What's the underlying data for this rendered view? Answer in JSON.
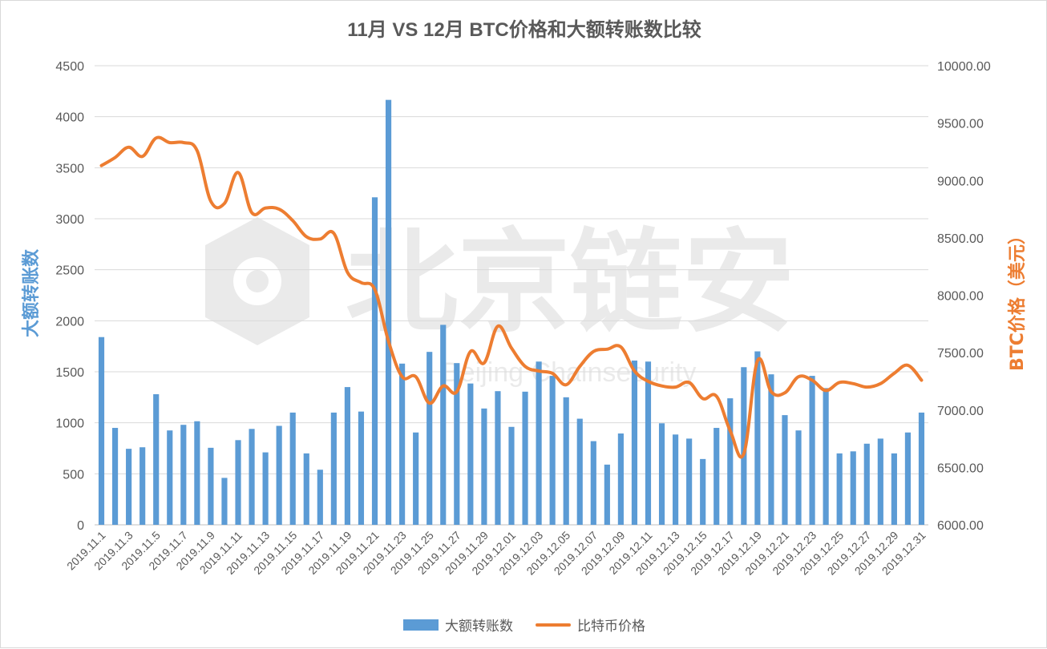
{
  "chart_data": {
    "type": "bar",
    "title": "11月 VS 12月 BTC价格和大额转账数比较",
    "ylabel_left": "大额转账数",
    "ylabel_right": "BTC价格（美元）",
    "ylim_left": [
      0,
      4500
    ],
    "yticks_left": [
      "0",
      "500",
      "1000",
      "1500",
      "2000",
      "2500",
      "3000",
      "3500",
      "4000",
      "4500"
    ],
    "ylim_right": [
      6000,
      10000
    ],
    "yticks_right": [
      "6000.00",
      "6500.00",
      "7000.00",
      "7500.00",
      "8000.00",
      "8500.00",
      "9000.00",
      "9500.00",
      "10000.00"
    ],
    "grid": true,
    "legend_position": "bottom",
    "categories": [
      "2019.11.1",
      "2019.11.2",
      "2019.11.3",
      "2019.11.4",
      "2019.11.5",
      "2019.11.6",
      "2019.11.7",
      "2019.11.8",
      "2019.11.9",
      "2019.11.10",
      "2019.11.11",
      "2019.11.12",
      "2019.11.13",
      "2019.11.14",
      "2019.11.15",
      "2019.11.16",
      "2019.11.17",
      "2019.11.18",
      "2019.11.19",
      "2019.11.20",
      "2019.11.21",
      "2019.11.22",
      "2019.11.23",
      "2019.11.24",
      "2019.11.25",
      "2019.11.26",
      "2019.11.27",
      "2019.11.28",
      "2019.11.29",
      "2019.11.30",
      "2019.12.01",
      "2019.12.02",
      "2019.12.03",
      "2019.12.04",
      "2019.12.05",
      "2019.12.06",
      "2019.12.07",
      "2019.12.08",
      "2019.12.09",
      "2019.12.10",
      "2019.12.11",
      "2019.12.12",
      "2019.12.13",
      "2019.12.14",
      "2019.12.15",
      "2019.12.16",
      "2019.12.17",
      "2019.12.18",
      "2019.12.19",
      "2019.12.20",
      "2019.12.21",
      "2019.12.22",
      "2019.12.23",
      "2019.12.24",
      "2019.12.25",
      "2019.12.26",
      "2019.12.27",
      "2019.12.28",
      "2019.12.29",
      "2019.12.30",
      "2019.12.31"
    ],
    "tick_labels": [
      "2019.11.1",
      "2019.11.3",
      "2019.11.5",
      "2019.11.7",
      "2019.11.9",
      "2019.11.11",
      "2019.11.13",
      "2019.11.15",
      "2019.11.17",
      "2019.11.19",
      "2019.11.21",
      "2019.11.23",
      "2019.11.25",
      "2019.11.27",
      "2019.11.29",
      "2019.12.01",
      "2019.12.03",
      "2019.12.05",
      "2019.12.07",
      "2019.12.09",
      "2019.12.11",
      "2019.12.13",
      "2019.12.15",
      "2019.12.17",
      "2019.12.19",
      "2019.12.21",
      "2019.12.23",
      "2019.12.25",
      "2019.12.27",
      "2019.12.29",
      "2019.12.31"
    ],
    "series": [
      {
        "name": "大额转账数",
        "type": "bar",
        "axis": "left",
        "color": "#5b9bd5",
        "values": [
          1840,
          950,
          745,
          760,
          1280,
          925,
          980,
          1015,
          755,
          460,
          830,
          940,
          710,
          970,
          1100,
          700,
          540,
          1100,
          1350,
          1110,
          3210,
          4165,
          1580,
          905,
          1695,
          1960,
          1585,
          1385,
          1140,
          1310,
          960,
          1305,
          1600,
          1460,
          1250,
          1040,
          820,
          590,
          895,
          1610,
          1600,
          995,
          885,
          845,
          645,
          950,
          1240,
          1545,
          1700,
          1475,
          1075,
          925,
          1460,
          1340,
          700,
          720,
          795,
          845,
          700,
          905,
          1100
        ]
      },
      {
        "name": "比特币价格",
        "type": "line",
        "axis": "right",
        "color": "#ed7d31",
        "values": [
          9130,
          9200,
          9290,
          9210,
          9370,
          9330,
          9330,
          9260,
          8820,
          8800,
          9070,
          8720,
          8760,
          8750,
          8650,
          8510,
          8490,
          8540,
          8200,
          8110,
          8050,
          7600,
          7290,
          7290,
          7060,
          7210,
          7160,
          7510,
          7410,
          7730,
          7540,
          7380,
          7340,
          7320,
          7220,
          7380,
          7510,
          7530,
          7550,
          7340,
          7250,
          7210,
          7200,
          7240,
          7100,
          7120,
          6820,
          6620,
          7430,
          7160,
          7150,
          7290,
          7260,
          7170,
          7240,
          7230,
          7200,
          7230,
          7320,
          7390,
          7260
        ]
      }
    ]
  },
  "watermark": {
    "text": "北京链安",
    "subtext": "Beijing Chainsecurity"
  }
}
